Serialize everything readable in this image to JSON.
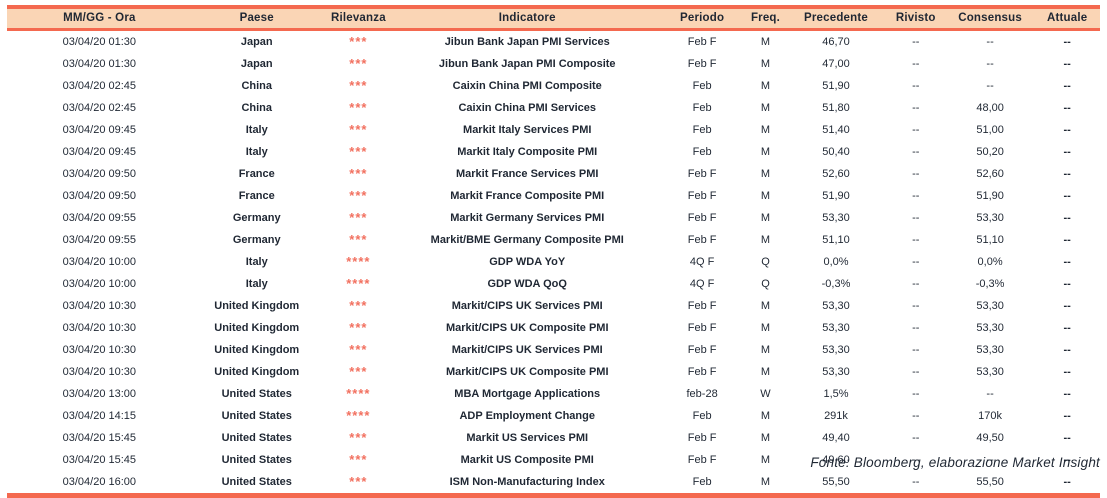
{
  "colors": {
    "accent_salmon": "#F4694F",
    "header_fill": "#FAD5B5",
    "stars": "#F2705F",
    "text": "#1F2733"
  },
  "table": {
    "columns": [
      {
        "id": "datetime",
        "label": "MM/GG - Ora"
      },
      {
        "id": "country",
        "label": "Paese"
      },
      {
        "id": "relevance",
        "label": "Rilevanza"
      },
      {
        "id": "indicator",
        "label": "Indicatore"
      },
      {
        "id": "period",
        "label": "Periodo"
      },
      {
        "id": "freq",
        "label": "Freq."
      },
      {
        "id": "previous",
        "label": "Precedente"
      },
      {
        "id": "revised",
        "label": "Rivisto"
      },
      {
        "id": "consensus",
        "label": "Consensus"
      },
      {
        "id": "actual",
        "label": "Attuale"
      }
    ],
    "rows": [
      {
        "datetime": "03/04/20 01:30",
        "country": "Japan",
        "relevance": "***",
        "indicator": "Jibun Bank Japan PMI Services",
        "period": "Feb F",
        "freq": "M",
        "previous": "46,70",
        "revised": "--",
        "consensus": "--",
        "actual": "--"
      },
      {
        "datetime": "03/04/20 01:30",
        "country": "Japan",
        "relevance": "***",
        "indicator": "Jibun Bank Japan PMI Composite",
        "period": "Feb F",
        "freq": "M",
        "previous": "47,00",
        "revised": "--",
        "consensus": "--",
        "actual": "--"
      },
      {
        "datetime": "03/04/20 02:45",
        "country": "China",
        "relevance": "***",
        "indicator": "Caixin China PMI Composite",
        "period": "Feb",
        "freq": "M",
        "previous": "51,90",
        "revised": "--",
        "consensus": "--",
        "actual": "--"
      },
      {
        "datetime": "03/04/20 02:45",
        "country": "China",
        "relevance": "***",
        "indicator": "Caixin China PMI Services",
        "period": "Feb",
        "freq": "M",
        "previous": "51,80",
        "revised": "--",
        "consensus": "48,00",
        "actual": "--"
      },
      {
        "datetime": "03/04/20 09:45",
        "country": "Italy",
        "relevance": "***",
        "indicator": "Markit Italy Services PMI",
        "period": "Feb",
        "freq": "M",
        "previous": "51,40",
        "revised": "--",
        "consensus": "51,00",
        "actual": "--"
      },
      {
        "datetime": "03/04/20 09:45",
        "country": "Italy",
        "relevance": "***",
        "indicator": "Markit Italy Composite PMI",
        "period": "Feb",
        "freq": "M",
        "previous": "50,40",
        "revised": "--",
        "consensus": "50,20",
        "actual": "--"
      },
      {
        "datetime": "03/04/20 09:50",
        "country": "France",
        "relevance": "***",
        "indicator": "Markit France Services PMI",
        "period": "Feb F",
        "freq": "M",
        "previous": "52,60",
        "revised": "--",
        "consensus": "52,60",
        "actual": "--"
      },
      {
        "datetime": "03/04/20 09:50",
        "country": "France",
        "relevance": "***",
        "indicator": "Markit France Composite PMI",
        "period": "Feb F",
        "freq": "M",
        "previous": "51,90",
        "revised": "--",
        "consensus": "51,90",
        "actual": "--"
      },
      {
        "datetime": "03/04/20 09:55",
        "country": "Germany",
        "relevance": "***",
        "indicator": "Markit Germany Services PMI",
        "period": "Feb F",
        "freq": "M",
        "previous": "53,30",
        "revised": "--",
        "consensus": "53,30",
        "actual": "--"
      },
      {
        "datetime": "03/04/20 09:55",
        "country": "Germany",
        "relevance": "***",
        "indicator": "Markit/BME Germany Composite PMI",
        "period": "Feb F",
        "freq": "M",
        "previous": "51,10",
        "revised": "--",
        "consensus": "51,10",
        "actual": "--"
      },
      {
        "datetime": "03/04/20 10:00",
        "country": "Italy",
        "relevance": "****",
        "indicator": "GDP WDA YoY",
        "period": "4Q F",
        "freq": "Q",
        "previous": "0,0%",
        "revised": "--",
        "consensus": "0,0%",
        "actual": "--"
      },
      {
        "datetime": "03/04/20 10:00",
        "country": "Italy",
        "relevance": "****",
        "indicator": "GDP WDA QoQ",
        "period": "4Q F",
        "freq": "Q",
        "previous": "-0,3%",
        "revised": "--",
        "consensus": "-0,3%",
        "actual": "--"
      },
      {
        "datetime": "03/04/20 10:30",
        "country": "United Kingdom",
        "relevance": "***",
        "indicator": "Markit/CIPS UK Services PMI",
        "period": "Feb F",
        "freq": "M",
        "previous": "53,30",
        "revised": "--",
        "consensus": "53,30",
        "actual": "--"
      },
      {
        "datetime": "03/04/20 10:30",
        "country": "United Kingdom",
        "relevance": "***",
        "indicator": "Markit/CIPS UK Composite PMI",
        "period": "Feb F",
        "freq": "M",
        "previous": "53,30",
        "revised": "--",
        "consensus": "53,30",
        "actual": "--"
      },
      {
        "datetime": "03/04/20 10:30",
        "country": "United Kingdom",
        "relevance": "***",
        "indicator": "Markit/CIPS UK Services PMI",
        "period": "Feb F",
        "freq": "M",
        "previous": "53,30",
        "revised": "--",
        "consensus": "53,30",
        "actual": "--"
      },
      {
        "datetime": "03/04/20 10:30",
        "country": "United Kingdom",
        "relevance": "***",
        "indicator": "Markit/CIPS UK Composite PMI",
        "period": "Feb F",
        "freq": "M",
        "previous": "53,30",
        "revised": "--",
        "consensus": "53,30",
        "actual": "--"
      },
      {
        "datetime": "03/04/20 13:00",
        "country": "United States",
        "relevance": "****",
        "indicator": "MBA Mortgage Applications",
        "period": "feb-28",
        "freq": "W",
        "previous": "1,5%",
        "revised": "--",
        "consensus": "--",
        "actual": "--"
      },
      {
        "datetime": "03/04/20 14:15",
        "country": "United States",
        "relevance": "****",
        "indicator": "ADP Employment Change",
        "period": "Feb",
        "freq": "M",
        "previous": "291k",
        "revised": "--",
        "consensus": "170k",
        "actual": "--"
      },
      {
        "datetime": "03/04/20 15:45",
        "country": "United States",
        "relevance": "***",
        "indicator": "Markit US Services PMI",
        "period": "Feb F",
        "freq": "M",
        "previous": "49,40",
        "revised": "--",
        "consensus": "49,50",
        "actual": "--"
      },
      {
        "datetime": "03/04/20 15:45",
        "country": "United States",
        "relevance": "***",
        "indicator": "Markit US Composite PMI",
        "period": "Feb F",
        "freq": "M",
        "previous": "49,60",
        "revised": "--",
        "consensus": "--",
        "actual": "--"
      },
      {
        "datetime": "03/04/20 16:00",
        "country": "United States",
        "relevance": "***",
        "indicator": "ISM Non-Manufacturing Index",
        "period": "Feb",
        "freq": "M",
        "previous": "55,50",
        "revised": "--",
        "consensus": "55,50",
        "actual": "--"
      }
    ]
  },
  "footer": {
    "source": "Fonte: Bloomberg, elaborazione Market Insight"
  }
}
